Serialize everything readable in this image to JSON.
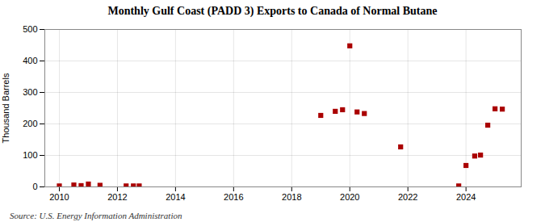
{
  "chart_data": {
    "type": "scatter",
    "title": "Monthly Gulf Coast (PADD 3) Exports to Canada of Normal Butane",
    "ylabel": "Thousand Barrels",
    "caption": "Source: U.S. Energy Information Administration",
    "color": "#aa0000",
    "marker": "square",
    "grid": true,
    "xlim": [
      2009.5,
      2025.9
    ],
    "ylim": [
      0,
      500
    ],
    "xticks": [
      2010,
      2012,
      2014,
      2016,
      2018,
      2020,
      2022,
      2024
    ],
    "yticks": [
      0,
      100,
      200,
      300,
      400,
      500
    ],
    "x": [
      2010.0,
      2010.5,
      2010.75,
      2011.0,
      2011.4,
      2012.3,
      2012.55,
      2012.75,
      2019.0,
      2019.5,
      2019.75,
      2020.0,
      2020.25,
      2020.5,
      2021.75,
      2023.75,
      2024.0,
      2024.3,
      2024.5,
      2024.75,
      2025.0,
      2025.25
    ],
    "values": [
      3,
      6,
      4,
      9,
      5,
      3,
      3,
      3,
      227,
      240,
      245,
      448,
      238,
      233,
      127,
      3,
      68,
      98,
      101,
      196,
      248,
      247
    ]
  }
}
